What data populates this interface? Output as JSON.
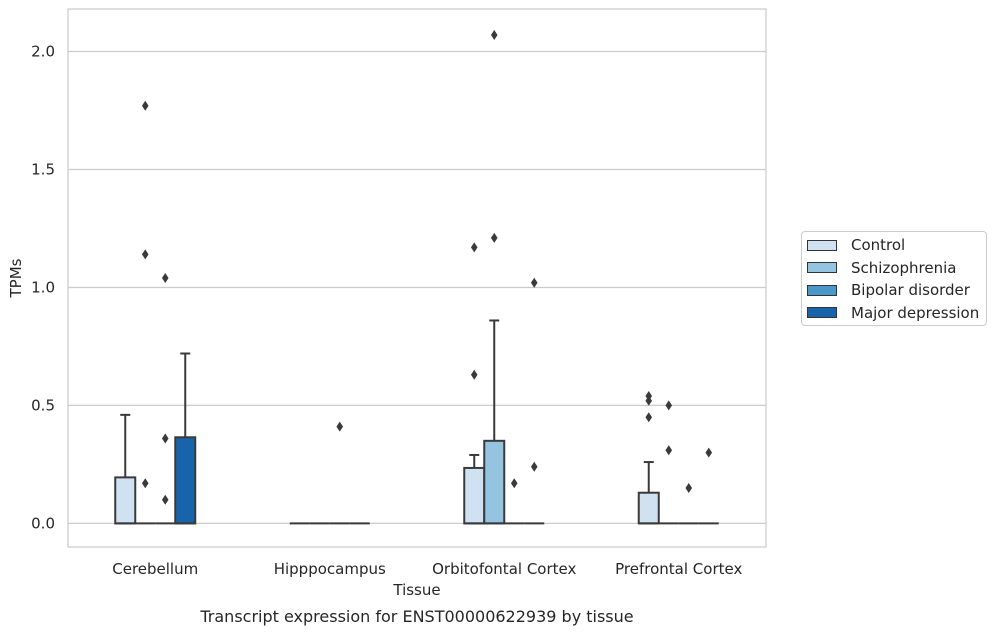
{
  "chart_data": {
    "type": "box",
    "title": "Transcript expression for ENST00000622939 by tissue",
    "xlabel": "Tissue",
    "ylabel": "TPMs",
    "ylim": [
      -0.1,
      2.18
    ],
    "yticks": [
      "0.0",
      "0.5",
      "1.0",
      "1.5",
      "2.0"
    ],
    "categories": [
      "Cerebellum",
      "Hipppocampus",
      "Orbitofontal Cortex",
      "Prefrontal Cortex"
    ],
    "grid": true,
    "legend_position": "right",
    "series": [
      {
        "name": "Control",
        "color": "#d0e1f2",
        "boxes": [
          {
            "q1": 0.0,
            "median": 0.0,
            "q3": 0.195,
            "whisker_low": 0.0,
            "whisker_high": 0.46,
            "outliers": []
          },
          {
            "q1": 0.0,
            "median": 0.0,
            "q3": 0.0,
            "whisker_low": 0.0,
            "whisker_high": 0.0,
            "outliers": []
          },
          {
            "q1": 0.0,
            "median": 0.0,
            "q3": 0.235,
            "whisker_low": 0.0,
            "whisker_high": 0.29,
            "outliers": [
              0.63,
              1.17
            ]
          },
          {
            "q1": 0.0,
            "median": 0.0,
            "q3": 0.13,
            "whisker_low": 0.0,
            "whisker_high": 0.26,
            "outliers": [
              0.45,
              0.52,
              0.54
            ]
          }
        ]
      },
      {
        "name": "Schizophrenia",
        "color": "#94c4df",
        "boxes": [
          {
            "q1": 0.0,
            "median": 0.0,
            "q3": 0.0,
            "whisker_low": 0.0,
            "whisker_high": 0.0,
            "outliers": [
              0.17,
              1.14,
              1.77
            ]
          },
          {
            "q1": 0.0,
            "median": 0.0,
            "q3": 0.0,
            "whisker_low": 0.0,
            "whisker_high": 0.0,
            "outliers": []
          },
          {
            "q1": 0.0,
            "median": 0.0,
            "q3": 0.35,
            "whisker_low": 0.0,
            "whisker_high": 0.86,
            "outliers": [
              1.21,
              2.07
            ]
          },
          {
            "q1": 0.0,
            "median": 0.0,
            "q3": 0.0,
            "whisker_low": 0.0,
            "whisker_high": 0.0,
            "outliers": [
              0.31,
              0.5
            ]
          }
        ]
      },
      {
        "name": "Bipolar disorder",
        "color": "#4a98c9",
        "boxes": [
          {
            "q1": 0.0,
            "median": 0.0,
            "q3": 0.0,
            "whisker_low": 0.0,
            "whisker_high": 0.0,
            "outliers": [
              0.1,
              0.36,
              1.04
            ]
          },
          {
            "q1": 0.0,
            "median": 0.0,
            "q3": 0.0,
            "whisker_low": 0.0,
            "whisker_high": 0.0,
            "outliers": [
              0.41
            ]
          },
          {
            "q1": 0.0,
            "median": 0.0,
            "q3": 0.0,
            "whisker_low": 0.0,
            "whisker_high": 0.0,
            "outliers": [
              0.17
            ]
          },
          {
            "q1": 0.0,
            "median": 0.0,
            "q3": 0.0,
            "whisker_low": 0.0,
            "whisker_high": 0.0,
            "outliers": [
              0.15
            ]
          }
        ]
      },
      {
        "name": "Major depression",
        "color": "#1764ab",
        "boxes": [
          {
            "q1": 0.0,
            "median": 0.0,
            "q3": 0.365,
            "whisker_low": 0.0,
            "whisker_high": 0.72,
            "outliers": []
          },
          {
            "q1": 0.0,
            "median": 0.0,
            "q3": 0.0,
            "whisker_low": 0.0,
            "whisker_high": 0.0,
            "outliers": []
          },
          {
            "q1": 0.0,
            "median": 0.0,
            "q3": 0.0,
            "whisker_low": 0.0,
            "whisker_high": 0.0,
            "outliers": [
              0.24,
              1.02
            ]
          },
          {
            "q1": 0.0,
            "median": 0.0,
            "q3": 0.0,
            "whisker_low": 0.0,
            "whisker_high": 0.0,
            "outliers": [
              0.3
            ]
          }
        ]
      }
    ]
  }
}
